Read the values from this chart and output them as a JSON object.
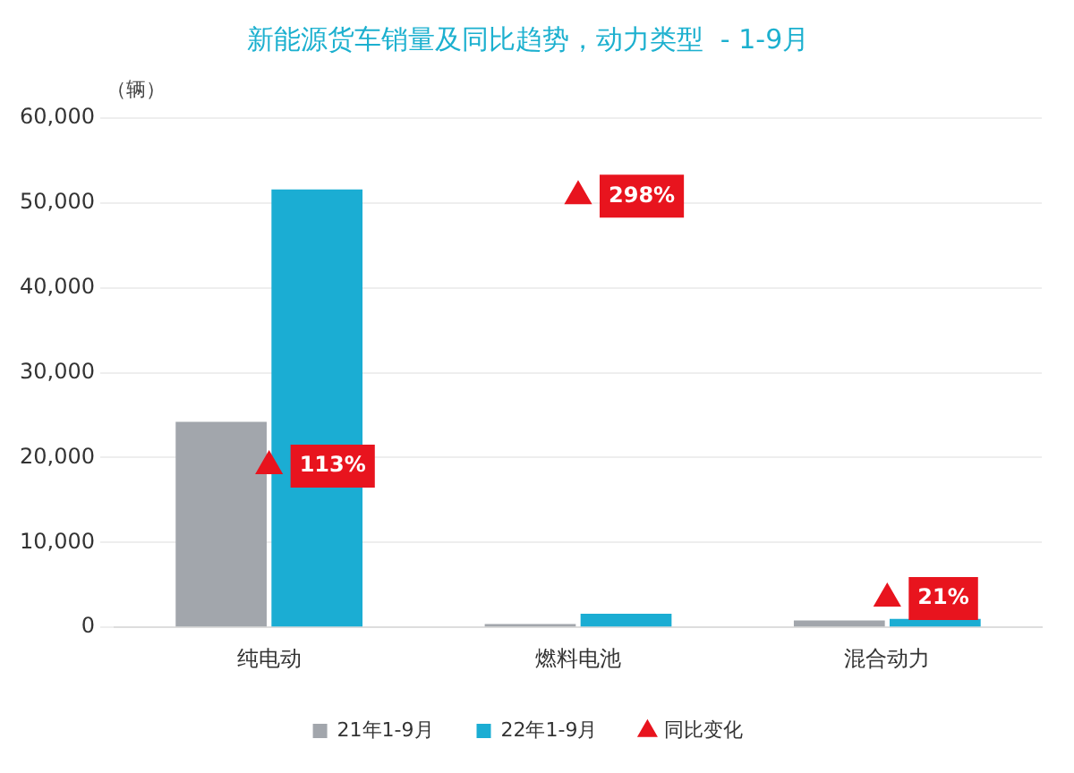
{
  "chart_data": {
    "type": "bar",
    "title": "新能源货车销量及同比趋势，动力类型  - 1-9月",
    "ylabel": "（辆）",
    "categories": [
      "纯电动",
      "燃料电池",
      "混合动力"
    ],
    "series": [
      {
        "name": "21年1-9月",
        "color": "#a2a6ac",
        "values": [
          24200,
          400,
          800
        ]
      },
      {
        "name": "22年1-9月",
        "color": "#1badd3",
        "values": [
          51600,
          1600,
          1000
        ]
      },
      {
        "name": "同比变化",
        "type": "scatter",
        "color": "#e8141e",
        "x": [
          "纯电动",
          "燃料电池",
          "混合动力"
        ],
        "values": [
          19000,
          50800,
          3400
        ]
      }
    ],
    "annotations": [
      {
        "text": "113%",
        "x": "纯电动",
        "y": 19000
      },
      {
        "text": "298%",
        "x": "燃料电池",
        "y": 50800
      },
      {
        "text": "21%",
        "x": "混合动力",
        "y": 3400
      }
    ],
    "ylim": [
      0,
      60000
    ],
    "yticks": [
      0,
      {
        "value": 10000,
        "label": "10,000"
      },
      {
        "value": 20000,
        "label": "20,000"
      },
      {
        "value": 30000,
        "label": "30,000"
      },
      {
        "value": 40000,
        "label": "40,000"
      },
      {
        "value": 50000,
        "label": "50,000"
      },
      {
        "value": 60000,
        "label": "60,000"
      }
    ],
    "grid": "y",
    "legend": "bottom",
    "marker": "triangle"
  }
}
